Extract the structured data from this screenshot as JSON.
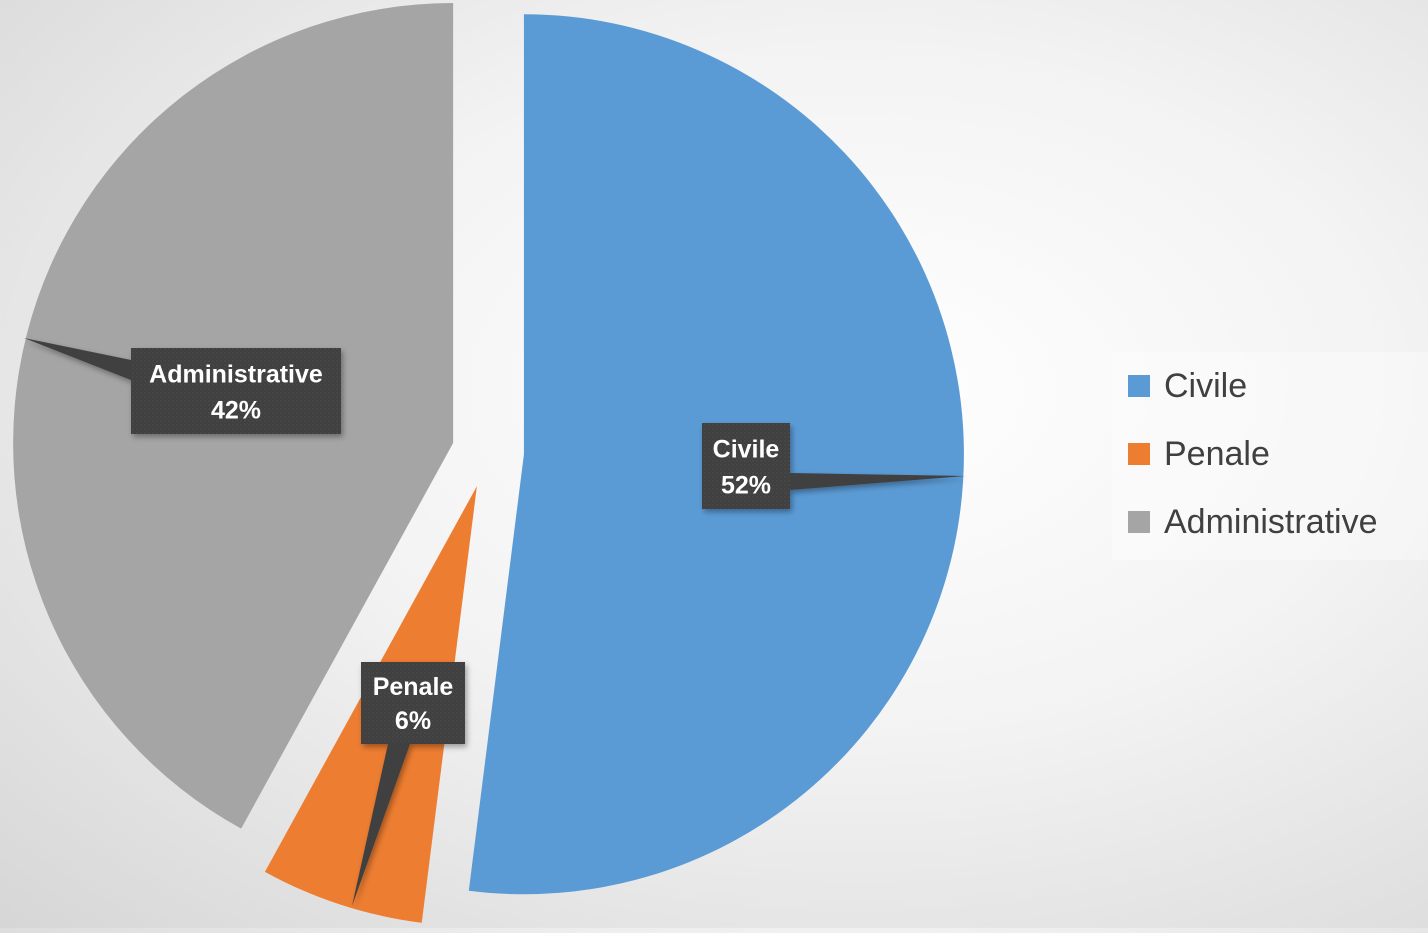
{
  "chart_data": {
    "type": "pie",
    "title": "",
    "categories": [
      "Civile",
      "Penale",
      "Administrative"
    ],
    "values": [
      52,
      6,
      42
    ],
    "value_labels": [
      "52%",
      "6%",
      "42%"
    ],
    "colors": [
      "#5b9bd5",
      "#ed7d31",
      "#a5a5a5"
    ],
    "exploded": true,
    "legend": {
      "position": "right",
      "items": [
        {
          "label": "Civile",
          "color": "#5b9bd5"
        },
        {
          "label": "Penale",
          "color": "#ed7d31"
        },
        {
          "label": "Administrative",
          "color": "#a5a5a5"
        }
      ]
    },
    "label_style": {
      "background": "#404040",
      "text_color": "#ffffff",
      "callout": true
    }
  }
}
